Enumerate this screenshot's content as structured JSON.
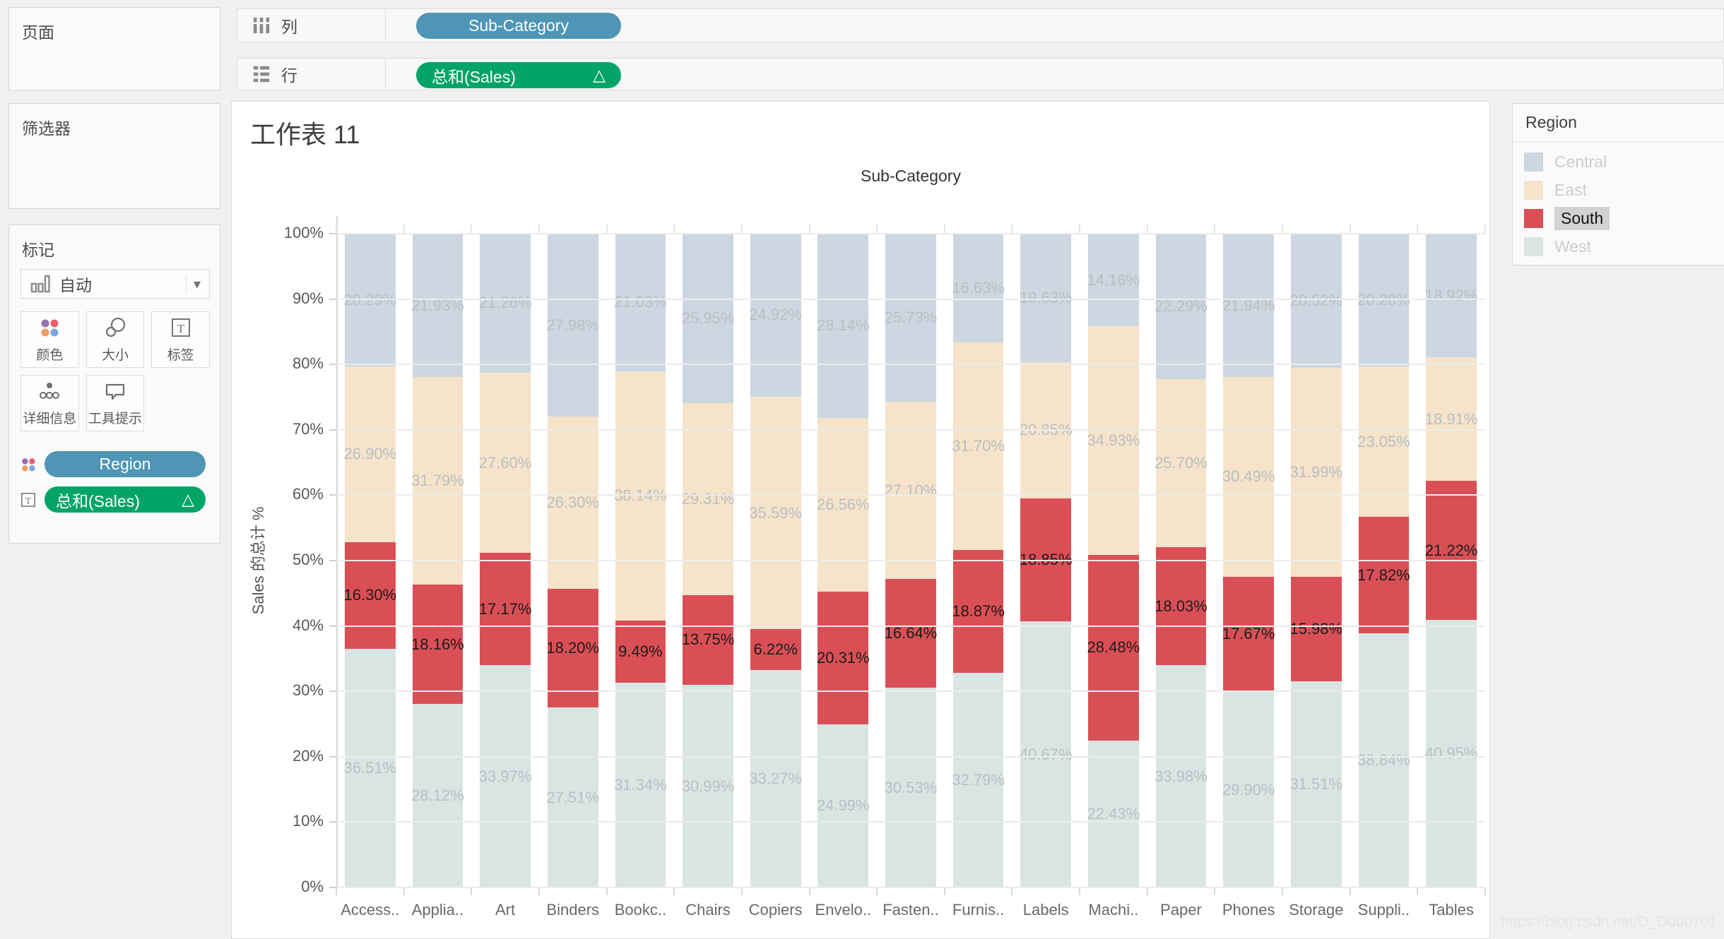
{
  "sidebar": {
    "pages_title": "页面",
    "filters_title": "筛选器",
    "marks": {
      "title": "标记",
      "mark_type": "自动",
      "buttons": [
        "颜色",
        "大小",
        "标签",
        "详细信息",
        "工具提示"
      ],
      "color_pill": "Region",
      "label_pill": "总和(Sales)",
      "delta": "△"
    }
  },
  "shelves": {
    "columns_label": "列",
    "rows_label": "行",
    "columns_pill": "Sub-Category",
    "rows_pill": "总和(Sales)",
    "delta": "△"
  },
  "sheet": {
    "title": "工作表 11"
  },
  "legend": {
    "title": "Region",
    "items": [
      {
        "label": "Central",
        "color": "#ccd7e2",
        "selected": false
      },
      {
        "label": "East",
        "color": "#f5e3ca",
        "selected": false
      },
      {
        "label": "South",
        "color": "#da4f55",
        "selected": true
      },
      {
        "label": "West",
        "color": "#d9e5e3",
        "selected": false
      }
    ]
  },
  "watermark": "https://blog.csdn.net/D_Ddd0701",
  "chart_data": {
    "type": "bar",
    "stacked": true,
    "percent_of_total": true,
    "title": "Sub-Category",
    "ylabel": "Sales 的总计 %",
    "ylim": [
      0,
      100
    ],
    "ytick_step": 10,
    "grid": true,
    "selected_series": "South",
    "label_color_default": "#b9bfc2",
    "label_color_selected": "#1c1c1c",
    "categories": [
      "Access..",
      "Applia..",
      "Art",
      "Binders",
      "Bookc..",
      "Chairs",
      "Copiers",
      "Envelo..",
      "Fasten..",
      "Furnis..",
      "Labels",
      "Machi..",
      "Paper",
      "Phones",
      "Storage",
      "Suppli..",
      "Tables"
    ],
    "series": [
      {
        "name": "West",
        "color": "#d9e5e3",
        "values": [
          36.51,
          28.12,
          33.97,
          27.51,
          31.34,
          30.99,
          33.27,
          24.99,
          30.53,
          32.79,
          40.67,
          22.43,
          33.98,
          29.9,
          31.51,
          38.84,
          40.95
        ]
      },
      {
        "name": "South",
        "color": "#da4f55",
        "values": [
          16.3,
          18.16,
          17.17,
          18.2,
          9.49,
          13.75,
          6.22,
          20.31,
          16.64,
          18.87,
          18.85,
          28.48,
          18.03,
          17.67,
          15.98,
          17.82,
          21.22
        ]
      },
      {
        "name": "East",
        "color": "#f5e3ca",
        "values": [
          26.9,
          31.79,
          27.6,
          26.3,
          38.14,
          29.31,
          35.59,
          26.56,
          27.1,
          31.7,
          20.85,
          34.93,
          25.7,
          30.49,
          31.99,
          23.05,
          18.91
        ]
      },
      {
        "name": "Central",
        "color": "#ccd7e2",
        "values": [
          20.29,
          21.93,
          21.26,
          27.98,
          21.03,
          25.95,
          24.92,
          28.14,
          25.73,
          16.63,
          19.63,
          14.16,
          22.29,
          21.94,
          20.52,
          20.28,
          18.92
        ]
      }
    ]
  }
}
